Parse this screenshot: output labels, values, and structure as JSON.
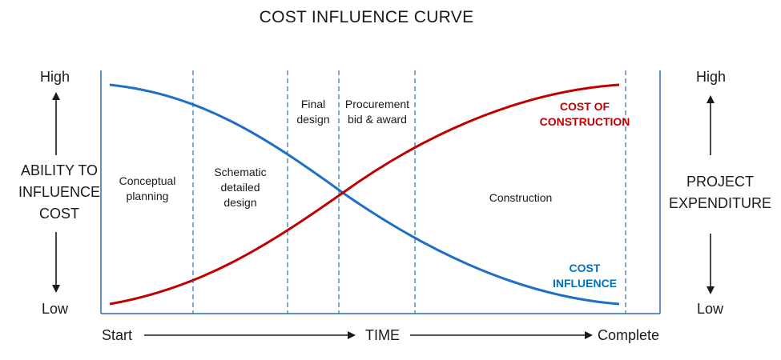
{
  "title": "COST INFLUENCE CURVE",
  "left_axis": {
    "high": "High",
    "low": "Low",
    "label_lines": [
      "ABILITY TO",
      "INFLUENCE",
      "COST"
    ]
  },
  "right_axis": {
    "high": "High",
    "low": "Low",
    "label_lines": [
      "PROJECT",
      "EXPENDITURE"
    ]
  },
  "phases": [
    {
      "lines": [
        "Conceptual",
        "planning"
      ]
    },
    {
      "lines": [
        "Schematic",
        "detailed",
        "design"
      ]
    },
    {
      "lines": [
        "Final",
        "design"
      ]
    },
    {
      "lines": [
        "Procurement",
        "bid & award"
      ]
    },
    {
      "lines": [
        "Construction"
      ]
    }
  ],
  "curves": {
    "cost_of_construction": {
      "lines": [
        "COST OF",
        "CONSTRUCTION"
      ],
      "color": "#c00000"
    },
    "cost_influence": {
      "lines": [
        "COST",
        "INFLUENCE"
      ],
      "color": "#0070c0"
    }
  },
  "time_axis": {
    "start": "Start",
    "middle": "TIME",
    "end": "Complete"
  },
  "colors": {
    "influence_line": "#1f6fc5",
    "construction_line": "#c00000",
    "divider": "#2e6db4",
    "frame": "#2e6db4",
    "arrows": "#1a1a1a"
  }
}
